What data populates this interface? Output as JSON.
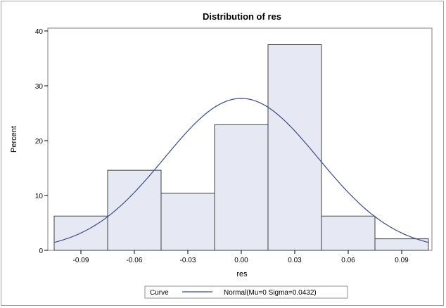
{
  "chart_data": {
    "type": "bar",
    "title": "Distribution of res",
    "xlabel": "res",
    "ylabel": "Percent",
    "ylim": [
      0,
      40
    ],
    "xlim": [
      -0.105,
      0.105
    ],
    "bins": [
      {
        "lo": -0.105,
        "hi": -0.075,
        "percent": 6.25
      },
      {
        "lo": -0.075,
        "hi": -0.045,
        "percent": 14.6
      },
      {
        "lo": -0.045,
        "hi": -0.015,
        "percent": 10.4
      },
      {
        "lo": -0.015,
        "hi": 0.015,
        "percent": 22.9
      },
      {
        "lo": 0.015,
        "hi": 0.045,
        "percent": 37.5
      },
      {
        "lo": 0.045,
        "hi": 0.075,
        "percent": 6.25
      },
      {
        "lo": 0.075,
        "hi": 0.105,
        "percent": 2.1
      }
    ],
    "x_ticks": [
      {
        "value": -0.09,
        "label": "-0.09"
      },
      {
        "value": -0.06,
        "label": "-0.06"
      },
      {
        "value": -0.03,
        "label": "-0.03"
      },
      {
        "value": 0.0,
        "label": "0.00"
      },
      {
        "value": 0.03,
        "label": "0.03"
      },
      {
        "value": 0.06,
        "label": "0.06"
      },
      {
        "value": 0.09,
        "label": "0.09"
      }
    ],
    "y_ticks": [
      {
        "value": 0,
        "label": "0"
      },
      {
        "value": 10,
        "label": "10"
      },
      {
        "value": 20,
        "label": "20"
      },
      {
        "value": 30,
        "label": "30"
      },
      {
        "value": 40,
        "label": "40"
      }
    ],
    "curve": {
      "mu": 0,
      "sigma": 0.0432,
      "bin_width": 0.03
    },
    "legend": {
      "title": "Curve",
      "entry": "Normal(Mu=0 Sigma=0.0432)",
      "placement": "bottom"
    },
    "colors": {
      "bar_fill": "#e6e9f3",
      "bar_stroke": "#404040",
      "curve": "#3a4a8c"
    }
  }
}
